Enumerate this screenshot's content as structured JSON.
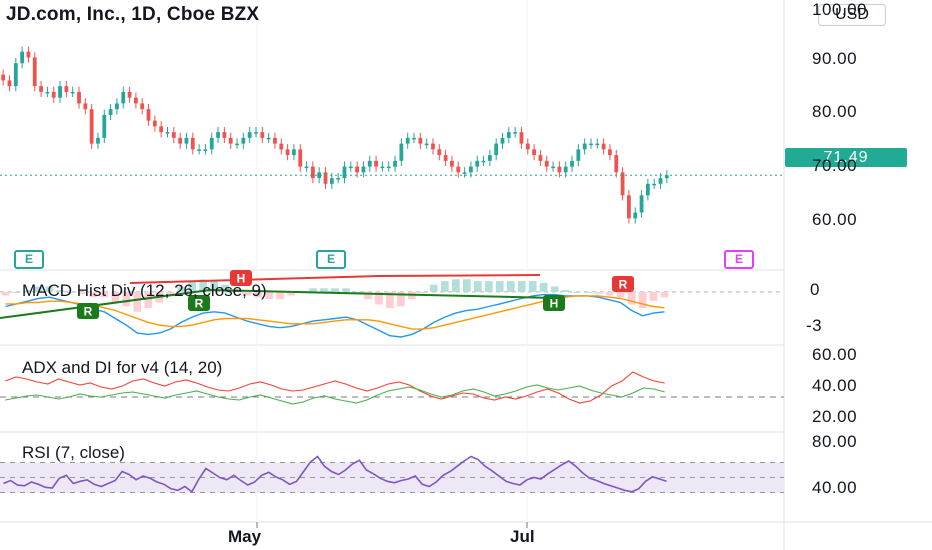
{
  "header": {
    "title": "JD.com, Inc., 1D, Cboe BZX",
    "currency": "USD",
    "last_price": "71.49"
  },
  "price_axis": {
    "labels": [
      "100.00",
      "90.00",
      "80.00",
      "70.00",
      "60.00"
    ]
  },
  "earnings": {
    "label": "E"
  },
  "indicators": {
    "macd": {
      "label": "MACD Hist Div (12, 26, close, 9)",
      "axis": [
        "0",
        "-3"
      ],
      "markers": {
        "regular_bull": "R",
        "hidden_bull": "H",
        "hidden_bear": "H",
        "regular_bear": "R"
      }
    },
    "adx": {
      "label": "ADX and DI for v4 (14, 20)",
      "axis": [
        "60.00",
        "40.00",
        "20.00"
      ]
    },
    "rsi": {
      "label": "RSI (7, close)",
      "axis": [
        "80.00",
        "40.00"
      ]
    }
  },
  "time_axis": {
    "labels": [
      "May",
      "Jul"
    ]
  },
  "colors": {
    "up": "#26a69a",
    "down": "#ef5350",
    "price_line": "#22ab94",
    "macd_line": "#2196f3",
    "signal_line": "#ff9800",
    "rsi": "#7e57c2",
    "di_plus": "#4caf50",
    "di_minus": "#f44336",
    "rsi_band": "#ede7f6",
    "future_earnings": "#e040fb"
  },
  "chart_data": [
    {
      "type": "candlestick",
      "title": "JD.com, Inc., 1D, Cboe BZX",
      "ylim": [
        55,
        102
      ],
      "close": [
        88,
        87,
        91,
        93,
        92,
        87,
        86,
        86,
        85,
        87,
        86,
        86,
        84,
        83,
        77,
        78,
        82,
        83,
        84,
        86,
        85,
        84,
        83,
        81,
        80,
        79,
        79,
        78,
        77,
        78,
        76,
        76,
        76,
        78,
        79,
        78,
        77,
        77,
        78,
        79,
        79,
        78,
        78,
        77,
        76,
        75,
        76,
        73,
        73,
        71,
        72,
        70,
        71,
        71,
        73,
        73,
        72,
        73,
        74,
        73,
        73,
        73,
        74,
        77,
        78,
        78,
        77,
        77,
        76,
        75,
        74,
        73,
        72,
        72,
        73,
        74,
        74,
        75,
        77,
        78,
        79,
        79,
        77,
        76,
        75,
        74,
        73,
        73,
        72,
        73,
        74,
        76,
        77,
        77,
        77,
        76,
        75,
        72,
        68,
        64,
        65,
        68,
        70,
        70,
        71,
        71.49
      ],
      "last": 71.49
    },
    {
      "type": "line",
      "title": "MACD Hist Div (12, 26, close, 9)",
      "ylim": [
        -4,
        1.5
      ],
      "series": [
        {
          "values": [
            -1.1,
            -0.9,
            -0.7,
            -0.5,
            -0.4,
            -0.6,
            -0.8,
            -1.0,
            -1.3,
            -1.5,
            -2.0,
            -2.5,
            -3.1,
            -3.2,
            -3.1,
            -2.8,
            -2.3,
            -1.9,
            -1.6,
            -1.5,
            -1.6,
            -1.9,
            -2.2,
            -2.4,
            -2.6,
            -2.7,
            -2.6,
            -2.4,
            -2.2,
            -2.1,
            -2.0,
            -1.9,
            -2.1,
            -2.5,
            -2.9,
            -3.3,
            -3.4,
            -3.2,
            -2.8,
            -2.3,
            -1.9,
            -1.6,
            -1.4,
            -1.3,
            -1.1,
            -0.9,
            -0.7,
            -0.5,
            -0.3,
            -0.2,
            -0.2,
            -0.3,
            -0.3,
            -0.3,
            -0.4,
            -0.6,
            -0.8,
            -1.4,
            -1.8,
            -1.6,
            -1.5
          ]
        },
        {
          "values": [
            -0.9,
            -0.9,
            -0.8,
            -0.8,
            -0.7,
            -0.7,
            -0.8,
            -0.9,
            -1.0,
            -1.2,
            -1.4,
            -1.7,
            -2.0,
            -2.3,
            -2.5,
            -2.6,
            -2.6,
            -2.5,
            -2.3,
            -2.1,
            -2.0,
            -2.0,
            -2.0,
            -2.1,
            -2.2,
            -2.3,
            -2.4,
            -2.4,
            -2.4,
            -2.3,
            -2.2,
            -2.1,
            -2.1,
            -2.1,
            -2.2,
            -2.4,
            -2.6,
            -2.8,
            -2.8,
            -2.7,
            -2.5,
            -2.3,
            -2.1,
            -1.9,
            -1.7,
            -1.5,
            -1.3,
            -1.1,
            -0.9,
            -0.7,
            -0.5,
            -0.4,
            -0.3,
            -0.3,
            -0.3,
            -0.4,
            -0.5,
            -0.7,
            -0.9,
            -1.1,
            -1.2
          ]
        }
      ]
    },
    {
      "type": "line",
      "title": "ADX and DI for v4 (14, 20)",
      "ylim": [
        0,
        60
      ],
      "series": [
        {
          "values": [
            36,
            40,
            38,
            35,
            33,
            38,
            35,
            32,
            34,
            30,
            28,
            31,
            36,
            38,
            34,
            31,
            35,
            37,
            34,
            30,
            27,
            26,
            29,
            33,
            35,
            32,
            28,
            26,
            27,
            30,
            33,
            36,
            33,
            29,
            26,
            29,
            33,
            35,
            32,
            26,
            21,
            18,
            21,
            24,
            23,
            19,
            17,
            20,
            18,
            21,
            25,
            28,
            24,
            18,
            14,
            16,
            22,
            31,
            36,
            45,
            40,
            36,
            34
          ]
        },
        {
          "values": [
            17,
            19,
            21,
            22,
            20,
            18,
            20,
            23,
            21,
            20,
            22,
            24,
            25,
            23,
            21,
            19,
            22,
            24,
            26,
            23,
            20,
            18,
            17,
            20,
            22,
            19,
            16,
            13,
            15,
            19,
            21,
            18,
            16,
            14,
            17,
            22,
            26,
            28,
            30,
            27,
            23,
            20,
            22,
            26,
            28,
            25,
            21,
            23,
            26,
            30,
            32,
            29,
            27,
            29,
            31,
            27,
            24,
            22,
            20,
            24,
            29,
            28,
            25
          ]
        }
      ],
      "reference_level": 20
    },
    {
      "type": "line",
      "title": "RSI (7, close)",
      "ylim": [
        0,
        100
      ],
      "series": [
        {
          "values": [
            42,
            46,
            40,
            39,
            44,
            41,
            37,
            36,
            49,
            53,
            42,
            45,
            47,
            41,
            38,
            42,
            46,
            58,
            54,
            47,
            52,
            49,
            44,
            41,
            35,
            33,
            38,
            31,
            48,
            62,
            56,
            50,
            47,
            53,
            46,
            40,
            44,
            53,
            57,
            51,
            47,
            41,
            45,
            58,
            71,
            78,
            65,
            58,
            54,
            60,
            68,
            73,
            60,
            55,
            49,
            45,
            43,
            46,
            48,
            52,
            41,
            38,
            44,
            53,
            58,
            65,
            72,
            78,
            74,
            65,
            59,
            52,
            45,
            42,
            40,
            47,
            50,
            48,
            55,
            61,
            67,
            72,
            65,
            56,
            49,
            46,
            42,
            39,
            36,
            33,
            31,
            35,
            45,
            51,
            48,
            45
          ]
        }
      ],
      "reference_levels": [
        70,
        50,
        30
      ]
    }
  ]
}
